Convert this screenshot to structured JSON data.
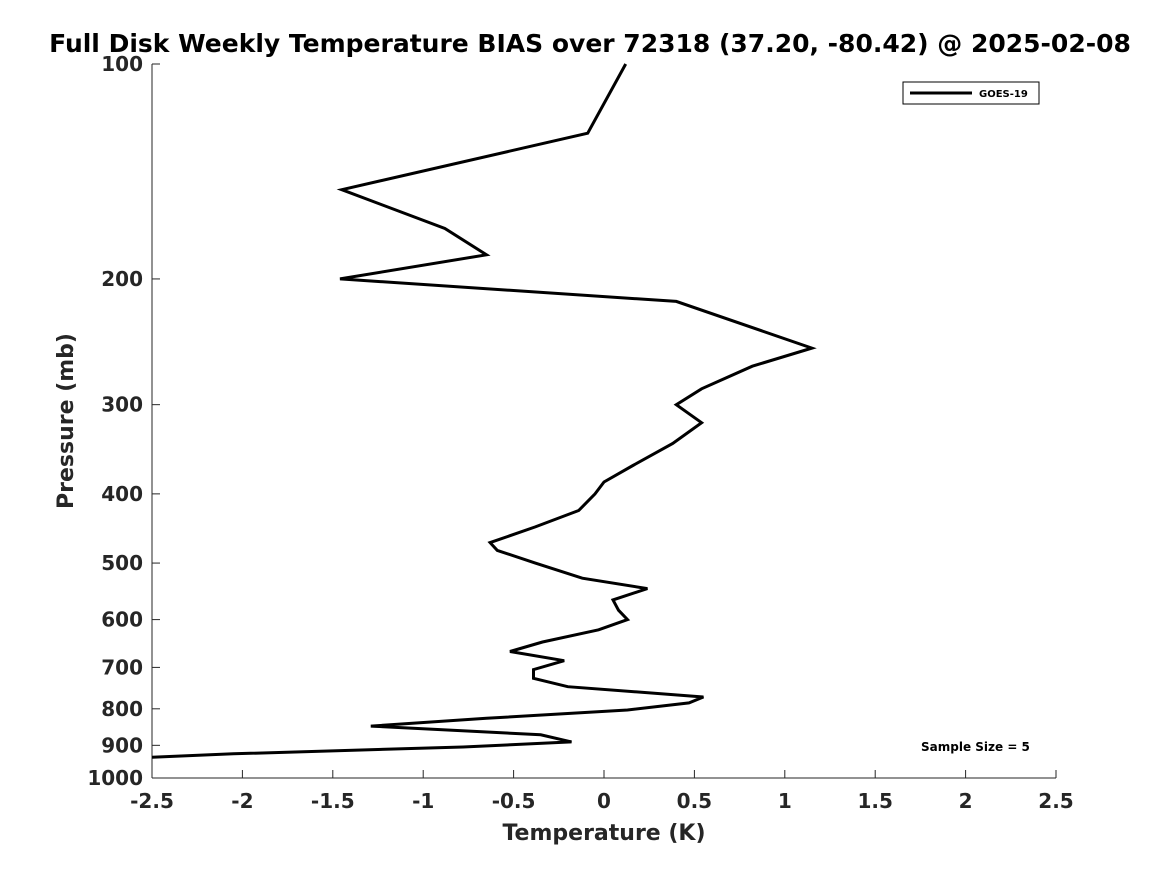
{
  "chart_data": {
    "type": "line",
    "title": "Full Disk Weekly Temperature BIAS over 72318 (37.20, -80.42) @ 2025-02-08",
    "xlabel": "Temperature (K)",
    "ylabel": "Pressure (mb)",
    "xlim": [
      -2.5,
      2.5
    ],
    "ylim": [
      100,
      1000
    ],
    "yscale": "log",
    "y_reversed": true,
    "grid": false,
    "x_ticks": [
      -2.5,
      -2,
      -1.5,
      -1,
      -0.5,
      0,
      0.5,
      1,
      1.5,
      2,
      2.5
    ],
    "x_tick_labels": [
      "-2.5",
      "-2",
      "-1.5",
      "-1",
      "-0.5",
      "0",
      "0.5",
      "1",
      "1.5",
      "2",
      "2.5"
    ],
    "y_ticks": [
      100,
      200,
      300,
      400,
      500,
      600,
      700,
      800,
      900,
      1000
    ],
    "y_tick_labels": [
      "100",
      "200",
      "300",
      "400",
      "500",
      "600",
      "700",
      "800",
      "900",
      "1000"
    ],
    "legend": {
      "location": "top-right",
      "entries": [
        "GOES-19"
      ]
    },
    "annotation": "Sample Size = 5",
    "series": [
      {
        "name": "GOES-19",
        "color": "#000000",
        "points": [
          {
            "x": 0.12,
            "p": 100
          },
          {
            "x": -0.09,
            "p": 125
          },
          {
            "x": -1.45,
            "p": 150
          },
          {
            "x": -0.88,
            "p": 170
          },
          {
            "x": -0.65,
            "p": 185
          },
          {
            "x": -1.46,
            "p": 200
          },
          {
            "x": 0.4,
            "p": 215
          },
          {
            "x": 1.15,
            "p": 250
          },
          {
            "x": 0.82,
            "p": 265
          },
          {
            "x": 0.54,
            "p": 285
          },
          {
            "x": 0.4,
            "p": 300
          },
          {
            "x": 0.54,
            "p": 318
          },
          {
            "x": 0.38,
            "p": 340
          },
          {
            "x": 0.16,
            "p": 365
          },
          {
            "x": 0.0,
            "p": 385
          },
          {
            "x": -0.05,
            "p": 400
          },
          {
            "x": -0.14,
            "p": 422
          },
          {
            "x": -0.38,
            "p": 445
          },
          {
            "x": -0.63,
            "p": 468
          },
          {
            "x": -0.59,
            "p": 480
          },
          {
            "x": -0.38,
            "p": 500
          },
          {
            "x": -0.12,
            "p": 525
          },
          {
            "x": 0.24,
            "p": 543
          },
          {
            "x": 0.05,
            "p": 563
          },
          {
            "x": 0.08,
            "p": 582
          },
          {
            "x": 0.13,
            "p": 600
          },
          {
            "x": -0.03,
            "p": 620
          },
          {
            "x": -0.34,
            "p": 645
          },
          {
            "x": -0.52,
            "p": 665
          },
          {
            "x": -0.22,
            "p": 685
          },
          {
            "x": -0.39,
            "p": 705
          },
          {
            "x": -0.39,
            "p": 725
          },
          {
            "x": -0.2,
            "p": 745
          },
          {
            "x": 0.55,
            "p": 770
          },
          {
            "x": 0.47,
            "p": 785
          },
          {
            "x": 0.13,
            "p": 803
          },
          {
            "x": -0.65,
            "p": 825
          },
          {
            "x": -1.29,
            "p": 846
          },
          {
            "x": -0.35,
            "p": 870
          },
          {
            "x": -0.18,
            "p": 890
          },
          {
            "x": -0.78,
            "p": 905
          },
          {
            "x": -2.05,
            "p": 925
          },
          {
            "x": -2.5,
            "p": 935
          }
        ]
      }
    ]
  }
}
